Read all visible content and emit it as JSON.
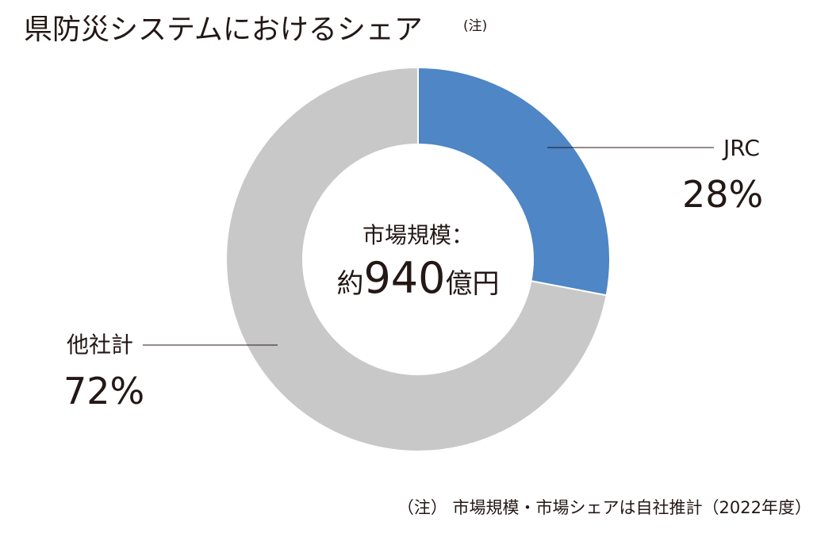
{
  "title": "県防災システムにおけるシェア",
  "title_note": "(注)",
  "colors": {
    "jrc": "#4e86c6",
    "others": "#c8c8c8",
    "text": "#231815"
  },
  "chart_data": {
    "type": "pie",
    "variant": "donut",
    "title": "県防災システムにおけるシェア",
    "slices": [
      {
        "label": "JRC",
        "value": 28,
        "display": "28%"
      },
      {
        "label": "他社計",
        "value": 72,
        "display": "72%"
      }
    ],
    "center_label": "市場規模：",
    "center_value": {
      "prefix": "約",
      "number": "940",
      "suffix": "億円"
    }
  },
  "footnote": "（注） 市場規模・市場シェアは自社推計（2022年度）"
}
